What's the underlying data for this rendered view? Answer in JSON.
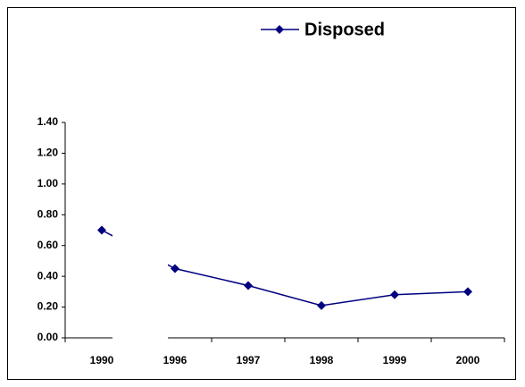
{
  "chart_data": {
    "type": "line",
    "categories": [
      "1990",
      "1996",
      "1997",
      "1998",
      "1999",
      "2000"
    ],
    "series": [
      {
        "name": "Disposed",
        "color": "#000080",
        "values": [
          0.7,
          0.45,
          0.34,
          0.21,
          0.28,
          0.3
        ]
      }
    ],
    "ylim": [
      0,
      1.4
    ],
    "yticks": [
      {
        "value": 0,
        "label": "0.00"
      },
      {
        "value": 0.2,
        "label": "0.20"
      },
      {
        "value": 0.4,
        "label": "0.40"
      },
      {
        "value": 0.6,
        "label": "0.60"
      },
      {
        "value": 0.8,
        "label": "0.80"
      },
      {
        "value": 1.0,
        "label": "1.00"
      },
      {
        "value": 1.2,
        "label": "1.20"
      },
      {
        "value": 1.4,
        "label": "1.40"
      }
    ],
    "legend": "top"
  }
}
